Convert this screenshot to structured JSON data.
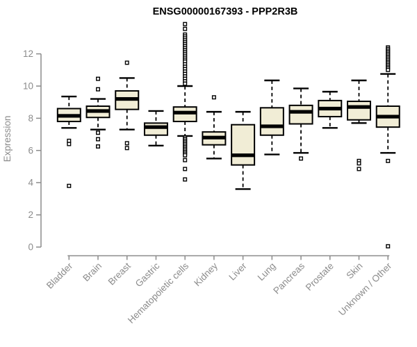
{
  "chart_data": {
    "type": "boxplot",
    "title": "ENSG00000167393 - PPP2R3B",
    "xlabel": "",
    "ylabel": "Expression",
    "ylim": [
      0,
      12
    ],
    "yticks": [
      0,
      2,
      4,
      6,
      8,
      10,
      12
    ],
    "grid": false,
    "legend": "none",
    "colors": {
      "box_fill": "#F1EDD6",
      "box_stroke": "#000000",
      "median": "#000000",
      "axis": "#8b8b8b",
      "title": "#000000",
      "background": "#ffffff"
    },
    "categories": [
      "Bladder",
      "Brain",
      "Breast",
      "Gastric",
      "Hematopoietic cells",
      "Kidney",
      "Liver",
      "Lung",
      "Pancreas",
      "Prostate",
      "Skin",
      "Unknown / Other"
    ],
    "boxes": [
      {
        "category": "Bladder",
        "low": 7.4,
        "q1": 7.8,
        "median": 8.15,
        "q3": 8.6,
        "high": 9.35,
        "outliers": [
          6.6,
          6.4,
          3.8
        ]
      },
      {
        "category": "Brain",
        "low": 7.3,
        "q1": 8.05,
        "median": 8.45,
        "q3": 8.75,
        "high": 9.2,
        "outliers": [
          10.45,
          9.8,
          7.1,
          6.7,
          6.25
        ]
      },
      {
        "category": "Breast",
        "low": 7.3,
        "q1": 8.55,
        "median": 9.2,
        "q3": 9.7,
        "high": 10.5,
        "outliers": [
          11.45,
          6.45,
          6.15
        ]
      },
      {
        "category": "Gastric",
        "low": 6.3,
        "q1": 6.95,
        "median": 7.45,
        "q3": 7.7,
        "high": 8.45,
        "outliers": []
      },
      {
        "category": "Hematopoietic cells",
        "low": 6.9,
        "q1": 7.8,
        "median": 8.35,
        "q3": 8.7,
        "high": 10.0,
        "outliers": [
          13.85,
          13.55,
          13.2,
          13.08,
          12.96,
          12.84,
          12.72,
          12.6,
          12.48,
          12.36,
          12.24,
          12.12,
          12.0,
          11.88,
          11.76,
          11.64,
          11.52,
          11.35,
          11.2,
          11.05,
          10.9,
          10.75,
          10.6,
          10.45,
          10.3,
          10.15,
          6.8,
          6.7,
          6.6,
          6.5,
          6.4,
          6.3,
          6.2,
          6.1,
          6.0,
          5.9,
          5.8,
          5.7,
          5.4,
          4.85,
          4.2
        ]
      },
      {
        "category": "Kidney",
        "low": 5.5,
        "q1": 6.35,
        "median": 6.8,
        "q3": 7.15,
        "high": 8.4,
        "outliers": [
          9.3
        ]
      },
      {
        "category": "Liver",
        "low": 3.6,
        "q1": 5.1,
        "median": 5.7,
        "q3": 7.6,
        "high": 8.4,
        "outliers": []
      },
      {
        "category": "Lung",
        "low": 5.75,
        "q1": 6.95,
        "median": 7.5,
        "q3": 8.65,
        "high": 10.35,
        "outliers": []
      },
      {
        "category": "Pancreas",
        "low": 5.85,
        "q1": 7.65,
        "median": 8.4,
        "q3": 8.8,
        "high": 9.85,
        "outliers": [
          5.5
        ]
      },
      {
        "category": "Prostate",
        "low": 7.4,
        "q1": 8.1,
        "median": 8.6,
        "q3": 9.1,
        "high": 9.65,
        "outliers": []
      },
      {
        "category": "Skin",
        "low": 7.7,
        "q1": 7.9,
        "median": 8.7,
        "q3": 9.05,
        "high": 10.35,
        "outliers": [
          5.35,
          5.2,
          4.85
        ]
      },
      {
        "category": "Unknown / Other",
        "low": 5.85,
        "q1": 7.45,
        "median": 8.1,
        "q3": 8.75,
        "high": 10.75,
        "outliers": [
          12.4,
          12.3,
          12.2,
          12.1,
          12.0,
          11.9,
          11.8,
          11.7,
          11.6,
          11.5,
          11.4,
          11.3,
          11.2,
          11.1,
          11.0,
          5.35,
          0.05
        ]
      }
    ]
  }
}
